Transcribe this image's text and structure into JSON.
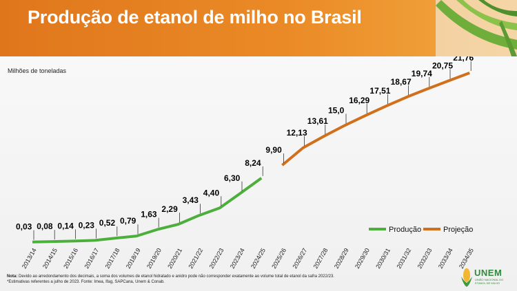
{
  "header": {
    "title": "Produção de etanol de milho no Brasil"
  },
  "footer": {
    "note_label": "Nota:",
    "note_text": " Devido ao arredondamento dos decimais, a soma dos volumes de etanol hidratado e anidro pode não corresponder exatamente ao volume total de etanol da safra 2022/23.",
    "note_line2": "*Estimativas referentes a julho de 2023. Fonte: Imea, Ifag, SAPCana, Unem & Conab.",
    "logo_name": "UNEM",
    "logo_sub": "UNIÃO NACIONAL DO ETANOL DE MILHO"
  },
  "colors": {
    "header": "#e8801f",
    "production": "#4caf3c",
    "projection": "#d06f1c"
  },
  "chart_data": {
    "type": "line",
    "title": "Produção de etanol de milho no Brasil",
    "ylabel": "Milhões de toneladas",
    "xlabel": "",
    "ylim": [
      0,
      23
    ],
    "grid": false,
    "legend_position": "bottom-right",
    "categories": [
      "2013/14",
      "2014/15",
      "2015/16",
      "2016/17",
      "2017/18",
      "2018/19",
      "2019/20",
      "2020/21",
      "2021/22",
      "2022/23",
      "2023/24",
      "2024/25",
      "2025/26",
      "2026/27",
      "2027/28",
      "2028/29",
      "2029/30",
      "2030/31",
      "2031/32",
      "2032/33",
      "2033/34",
      "2034/35"
    ],
    "labels": [
      "0,03",
      "0,08",
      "0,14",
      "0,23",
      "0,52",
      "0,79",
      "1,63",
      "2,29",
      "3,43",
      "4,40",
      "6,30",
      "8,24",
      "9,90",
      "12,13",
      "13,61",
      "15,0",
      "16,29",
      "17,51",
      "18,67",
      "19,74",
      "20,75",
      "21,76"
    ],
    "values": [
      0.03,
      0.08,
      0.14,
      0.23,
      0.52,
      0.79,
      1.63,
      2.29,
      3.43,
      4.4,
      6.3,
      8.24,
      9.9,
      12.13,
      13.61,
      15.0,
      16.29,
      17.51,
      18.67,
      19.74,
      20.75,
      21.76
    ],
    "series": [
      {
        "name": "Produção",
        "from": 0,
        "to": 11
      },
      {
        "name": "Projeção",
        "from": 12,
        "to": 21
      }
    ]
  }
}
